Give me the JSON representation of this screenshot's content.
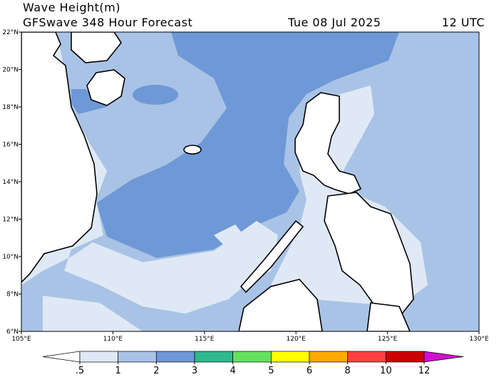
{
  "header": {
    "title": "Wave Height(m)",
    "subtitle": "GFSwave 348 Hour Forecast",
    "date": "Tue 08 Jul 2025",
    "time": "12 UTC"
  },
  "map": {
    "lat_ticks": [
      {
        "value": 6,
        "label": "6°N"
      },
      {
        "value": 8,
        "label": "8°N"
      },
      {
        "value": 10,
        "label": "10°N"
      },
      {
        "value": 12,
        "label": "12°N"
      },
      {
        "value": 14,
        "label": "14°N"
      },
      {
        "value": 16,
        "label": "16°N"
      },
      {
        "value": 18,
        "label": "18°N"
      },
      {
        "value": 20,
        "label": "20°N"
      },
      {
        "value": 22,
        "label": "22°N"
      }
    ],
    "lon_ticks": [
      {
        "value": 105,
        "label": "105°E"
      },
      {
        "value": 110,
        "label": "110°E"
      },
      {
        "value": 115,
        "label": "115°E"
      },
      {
        "value": 120,
        "label": "120°E"
      },
      {
        "value": 125,
        "label": "125°E"
      },
      {
        "value": 130,
        "label": "130°E"
      }
    ]
  },
  "colorbar": {
    "levels": [
      {
        "value": 0.5,
        "label": ".5"
      },
      1,
      2,
      3,
      4,
      5,
      6,
      8,
      10,
      12
    ],
    "colors": [
      "#ffffff",
      "#dfe9f5",
      "#a9c3e6",
      "#6f98d6",
      "#30b88c",
      "#66e060",
      "#ffff00",
      "#ffaa00",
      "#ff4040",
      "#cc0000",
      "#d010d0"
    ]
  }
}
